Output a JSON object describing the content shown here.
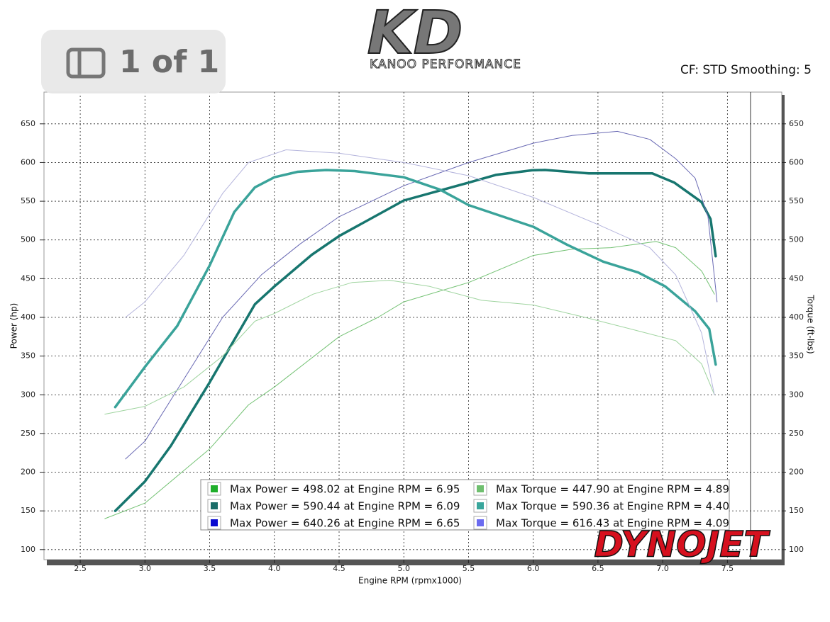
{
  "overlay": {
    "page_counter": "1 of 1"
  },
  "chart_data": {
    "type": "line",
    "logo_mark": "KD",
    "logo_text": "KANOO PERFORMANCE",
    "annotation": "CF: STD Smoothing: 5",
    "brand": "DYNOJET",
    "x_label": "Engine RPM (rpmx1000)",
    "y_label": "Power (hp)",
    "y2_label": "Torque (ft-lbs)",
    "xlim": [
      2.22,
      7.92
    ],
    "ylim": [
      87,
      691
    ],
    "y2lim": [
      87,
      691
    ],
    "xticks": [
      2.5,
      {
        "value": 3,
        "label": "3.0"
      },
      3.5,
      {
        "value": 4,
        "label": "4.0"
      },
      4.5,
      {
        "value": 5,
        "label": "5.0"
      },
      5.5,
      {
        "value": 6,
        "label": "6.0"
      },
      6.5,
      {
        "value": 7,
        "label": "7.0"
      },
      7.5
    ],
    "yticks": [
      100,
      150,
      200,
      250,
      300,
      350,
      400,
      450,
      500,
      550,
      600,
      650
    ],
    "y2ticks": [
      100,
      150,
      200,
      250,
      300,
      350,
      400,
      450,
      500,
      550,
      600,
      650
    ],
    "grid": true,
    "series": [
      {
        "name": "Max Power = 498.02 at Engine RPM = 6.95",
        "color": "#1fae2a",
        "line_color": "#74c274",
        "width": 1,
        "x": [
          2.69,
          3.0,
          3.5,
          3.8,
          4.0,
          4.5,
          4.8,
          5.0,
          5.5,
          6.0,
          6.3,
          6.6,
          6.95,
          7.1,
          7.3,
          7.4
        ],
        "values": [
          140,
          160,
          230,
          287,
          310,
          375,
          400,
          420,
          445,
          480,
          488,
          490,
          498,
          490,
          460,
          430
        ]
      },
      {
        "name": "Max Power = 590.44 at Engine RPM = 6.09",
        "color": "#1b6e69",
        "line_color": "#17766f",
        "width": 3.5,
        "x": [
          2.77,
          3.0,
          3.2,
          3.5,
          3.69,
          3.85,
          4.0,
          4.29,
          4.5,
          5.0,
          5.5,
          5.71,
          5.99,
          6.09,
          6.43,
          6.65,
          6.92,
          7.09,
          7.3,
          7.37,
          7.41
        ],
        "values": [
          150,
          188,
          234,
          316,
          371,
          417,
          440,
          481,
          505,
          551,
          574,
          584,
          590,
          590.44,
          586,
          586,
          586,
          574,
          549,
          527,
          479
        ]
      },
      {
        "name": "Max Power = 640.26 at Engine RPM = 6.65",
        "color": "#0a0ad0",
        "line_color": "#6a6ab4",
        "width": 1,
        "x": [
          2.85,
          3.0,
          3.3,
          3.6,
          3.9,
          4.2,
          4.5,
          5.0,
          5.5,
          6.0,
          6.3,
          6.65,
          6.9,
          7.1,
          7.25,
          7.35,
          7.42
        ],
        "values": [
          217,
          240,
          320,
          400,
          455,
          495,
          530,
          570,
          600,
          625,
          635,
          640.26,
          630,
          605,
          580,
          530,
          420
        ]
      },
      {
        "name": "Max Torque = 447.90 at Engine RPM = 4.89",
        "color": "#6fbf6f",
        "line_color": "#9fd49f",
        "width": 1,
        "x": [
          2.69,
          3.0,
          3.3,
          3.6,
          3.85,
          4.0,
          4.3,
          4.6,
          4.89,
          5.2,
          5.6,
          6.0,
          6.4,
          6.8,
          7.1,
          7.3,
          7.4
        ],
        "values": [
          275,
          285,
          310,
          350,
          395,
          405,
          430,
          445,
          447.9,
          440,
          422,
          416,
          400,
          383,
          370,
          340,
          300
        ]
      },
      {
        "name": "Max Torque = 590.36 at Engine RPM = 4.40",
        "color": "#39a69c",
        "line_color": "#3aa39a",
        "width": 3.5,
        "x": [
          2.77,
          3.0,
          3.25,
          3.5,
          3.69,
          3.85,
          4.0,
          4.18,
          4.4,
          4.62,
          5.0,
          5.28,
          5.5,
          6.0,
          6.26,
          6.54,
          6.81,
          7.02,
          7.25,
          7.36,
          7.41
        ],
        "values": [
          284,
          336,
          389,
          467,
          536,
          568,
          581,
          588,
          590.36,
          589,
          581,
          565,
          545,
          517,
          494,
          472,
          458,
          440,
          408,
          385,
          339
        ]
      },
      {
        "name": "Max Torque = 616.43 at Engine RPM = 4.09",
        "color": "#6b6bf0",
        "line_color": "#b4b4dc",
        "width": 1,
        "x": [
          2.85,
          3.0,
          3.3,
          3.6,
          3.8,
          4.09,
          4.5,
          5.0,
          5.5,
          6.0,
          6.5,
          6.9,
          7.1,
          7.3,
          7.4
        ],
        "values": [
          400,
          420,
          480,
          560,
          600,
          616.43,
          612,
          600,
          583,
          555,
          520,
          490,
          455,
          380,
          300
        ]
      }
    ]
  }
}
